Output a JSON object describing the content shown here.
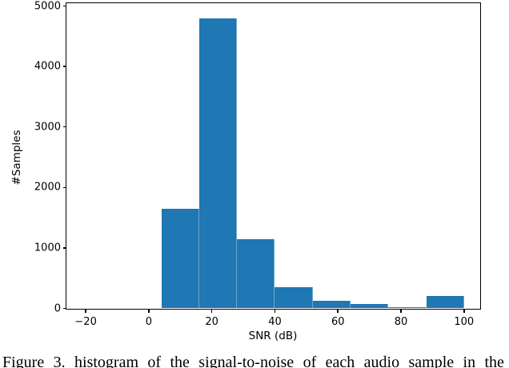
{
  "figure": {
    "caption": "Figure 3. histogram of the signal-to-noise of each audio sample in the"
  },
  "chart_data": {
    "type": "bar",
    "chart_kind": "histogram",
    "title": "",
    "xlabel": "SNR (dB)",
    "ylabel": "#Samples",
    "bin_edges": [
      4,
      16,
      28,
      40,
      52,
      64,
      76,
      88,
      100
    ],
    "counts": [
      1650,
      4800,
      1150,
      350,
      120,
      70,
      25,
      200
    ],
    "xlim": [
      -26,
      105
    ],
    "ylim": [
      0,
      5040
    ],
    "xticks": [
      -20,
      0,
      20,
      40,
      60,
      80,
      100
    ],
    "xtick_labels": [
      "−20",
      "0",
      "20",
      "40",
      "60",
      "80",
      "100"
    ],
    "yticks": [
      0,
      1000,
      2000,
      3000,
      4000,
      5000
    ],
    "ytick_labels": [
      "0",
      "1000",
      "2000",
      "3000",
      "4000",
      "5000"
    ],
    "bar_color": "#1f77b4",
    "axis_color": "#000000",
    "grid": false,
    "legend": null
  }
}
